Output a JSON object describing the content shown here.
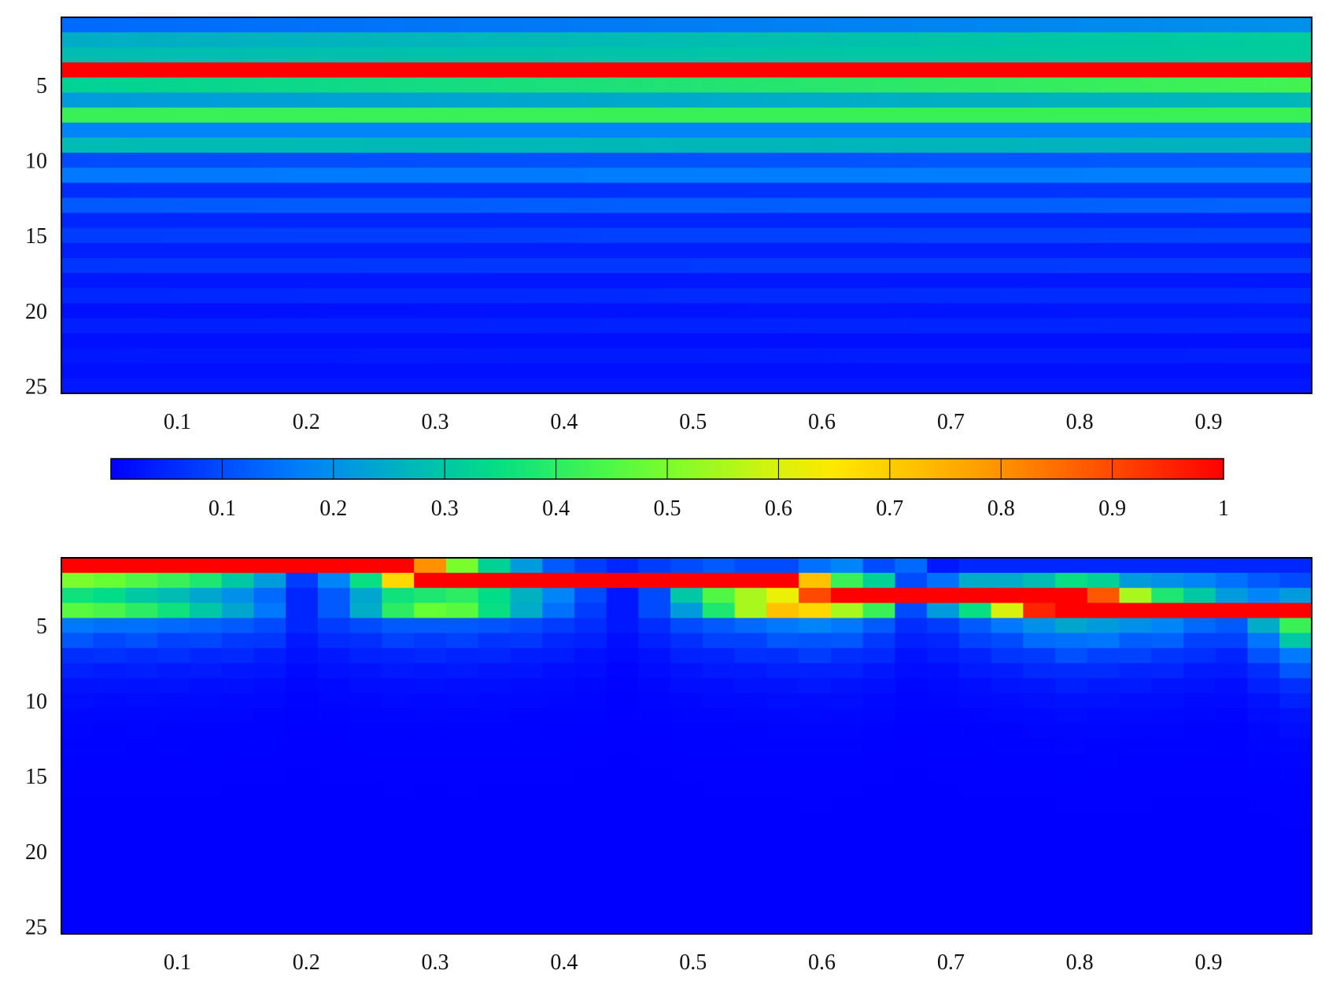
{
  "colormap": {
    "name": "jet",
    "stops": [
      "#0000ff",
      "#0080ff",
      "#00dd88",
      "#66ff33",
      "#ffee00",
      "#ffa000",
      "#ff0000"
    ]
  },
  "chart_data": [
    {
      "type": "heatmap",
      "panel": "top",
      "title": "",
      "xlabel": "",
      "ylabel": "",
      "x_ticks": [
        0.1,
        0.2,
        0.3,
        0.4,
        0.5,
        0.6,
        0.7,
        0.8,
        0.9
      ],
      "x_tick_labels": [
        "0.1",
        "0.2",
        "0.3",
        "0.4",
        "0.5",
        "0.6",
        "0.7",
        "0.8",
        "0.9"
      ],
      "y_ticks": [
        5,
        10,
        15,
        20,
        25
      ],
      "y_tick_labels": [
        "5",
        "10",
        "15",
        "20",
        "25"
      ],
      "xlim": [
        0.01,
        0.98
      ],
      "ylim": [
        0.5,
        25.5
      ],
      "y_inverted": true,
      "rows": 25,
      "row_values_left": [
        0.14,
        0.25,
        0.28,
        1.0,
        0.32,
        0.22,
        0.42,
        0.18,
        0.28,
        0.1,
        0.16,
        0.06,
        0.12,
        0.05,
        0.08,
        0.04,
        0.07,
        0.03,
        0.05,
        0.02,
        0.04,
        0.02,
        0.03,
        0.02,
        0.03
      ],
      "row_values_right": [
        0.2,
        0.31,
        0.31,
        1.0,
        0.43,
        0.27,
        0.42,
        0.18,
        0.26,
        0.12,
        0.17,
        0.07,
        0.13,
        0.05,
        0.09,
        0.04,
        0.08,
        0.03,
        0.06,
        0.03,
        0.05,
        0.02,
        0.04,
        0.02,
        0.03
      ]
    },
    {
      "type": "heatmap",
      "panel": "bottom",
      "title": "",
      "xlabel": "",
      "ylabel": "",
      "x_ticks": [
        0.1,
        0.2,
        0.3,
        0.4,
        0.5,
        0.6,
        0.7,
        0.8,
        0.9
      ],
      "x_tick_labels": [
        "0.1",
        "0.2",
        "0.3",
        "0.4",
        "0.5",
        "0.6",
        "0.7",
        "0.8",
        "0.9"
      ],
      "y_ticks": [
        5,
        10,
        15,
        20,
        25
      ],
      "y_tick_labels": [
        "5",
        "10",
        "15",
        "20",
        "25"
      ],
      "xlim": [
        0.01,
        0.98
      ],
      "ylim": [
        0.5,
        25.5
      ],
      "y_inverted": true,
      "columns": 39,
      "rows": 25,
      "top_rows": [
        [
          1.0,
          1.0,
          1.0,
          1.0,
          1.0,
          1.0,
          1.0,
          1.0,
          1.0,
          1.0,
          1.0,
          0.8,
          0.5,
          0.32,
          0.22,
          0.12,
          0.08,
          0.05,
          0.08,
          0.1,
          0.12,
          0.1,
          0.1,
          0.15,
          0.18,
          0.1,
          0.14,
          0.03,
          0.05,
          0.05,
          0.05,
          0.05,
          0.05,
          0.05,
          0.05,
          0.05,
          0.05,
          0.05,
          0.05
        ],
        [
          0.5,
          0.48,
          0.45,
          0.42,
          0.38,
          0.3,
          0.22,
          0.08,
          0.18,
          0.35,
          0.68,
          1.0,
          1.0,
          1.0,
          1.0,
          1.0,
          1.0,
          1.0,
          1.0,
          1.0,
          1.0,
          1.0,
          1.0,
          0.72,
          0.42,
          0.32,
          0.1,
          0.15,
          0.25,
          0.25,
          0.28,
          0.35,
          0.32,
          0.22,
          0.2,
          0.18,
          0.15,
          0.12,
          0.1
        ],
        [
          0.36,
          0.34,
          0.3,
          0.28,
          0.24,
          0.2,
          0.14,
          0.05,
          0.12,
          0.24,
          0.36,
          0.38,
          0.4,
          0.34,
          0.26,
          0.18,
          0.1,
          0.03,
          0.1,
          0.3,
          0.45,
          0.55,
          0.62,
          0.9,
          1.0,
          1.0,
          1.0,
          1.0,
          1.0,
          1.0,
          1.0,
          1.0,
          0.88,
          0.55,
          0.38,
          0.3,
          0.22,
          0.18,
          0.22
        ],
        [
          0.46,
          0.44,
          0.4,
          0.36,
          0.3,
          0.24,
          0.16,
          0.05,
          0.12,
          0.25,
          0.4,
          0.48,
          0.46,
          0.35,
          0.25,
          0.15,
          0.08,
          0.03,
          0.1,
          0.22,
          0.38,
          0.55,
          0.72,
          0.68,
          0.55,
          0.42,
          0.1,
          0.22,
          0.35,
          0.6,
          0.95,
          1.0,
          1.0,
          1.0,
          1.0,
          1.0,
          1.0,
          1.0,
          1.0
        ],
        [
          0.16,
          0.15,
          0.15,
          0.14,
          0.13,
          0.12,
          0.1,
          0.05,
          0.08,
          0.1,
          0.12,
          0.12,
          0.12,
          0.11,
          0.1,
          0.08,
          0.06,
          0.03,
          0.06,
          0.1,
          0.12,
          0.14,
          0.16,
          0.18,
          0.16,
          0.12,
          0.06,
          0.08,
          0.12,
          0.16,
          0.2,
          0.24,
          0.22,
          0.2,
          0.18,
          0.14,
          0.12,
          0.25,
          0.42
        ]
      ]
    }
  ],
  "colorbar": {
    "ticks": [
      0.1,
      0.2,
      0.3,
      0.4,
      0.5,
      0.6,
      0.7,
      0.8,
      0.9,
      1
    ],
    "tick_labels": [
      "0.1",
      "0.2",
      "0.3",
      "0.4",
      "0.5",
      "0.6",
      "0.7",
      "0.8",
      "0.9",
      "1"
    ],
    "range": [
      0,
      1
    ]
  }
}
